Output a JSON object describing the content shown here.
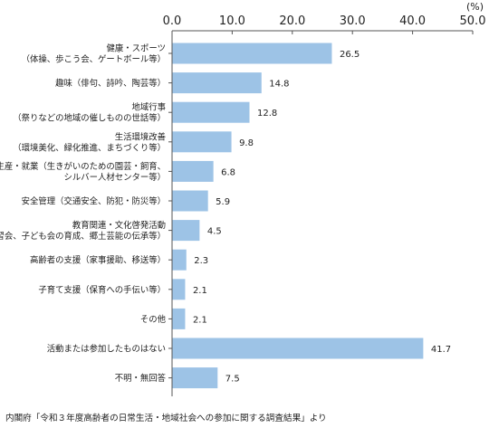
{
  "chart_data": {
    "type": "bar",
    "orientation": "horizontal",
    "unit_label": "(%)",
    "xlim": [
      0,
      50
    ],
    "ticks": [
      "0.0",
      "10.0",
      "20.0",
      "30.0",
      "40.0",
      "50.0"
    ],
    "tick_values": [
      0,
      10,
      20,
      30,
      40,
      50
    ],
    "bar_color": "#9dc3e6",
    "grid": false,
    "categories": [
      [
        "健康・スポーツ",
        "（体操、歩こう会、ゲートボール等）"
      ],
      [
        "趣味（俳句、詩吟、陶芸等）"
      ],
      [
        "地域行事",
        "（祭りなどの地域の催しものの世話等）"
      ],
      [
        "生活環境改善",
        "（環境美化、緑化推進、まちづくり等）"
      ],
      [
        "生産・就業（生きがいのための園芸・飼育、",
        "シルバー人材センター等）"
      ],
      [
        "安全管理（交通安全、防犯・防災等）"
      ],
      [
        "教育関連・文化啓発活動",
        "（学習会、子ども会の育成、郷土芸能の伝承等）"
      ],
      [
        "高齢者の支援（家事援助、移送等）"
      ],
      [
        "子育て支援（保育への手伝い等）"
      ],
      [
        "その他"
      ],
      [
        "活動または参加したものはない"
      ],
      [
        "不明・無回答"
      ]
    ],
    "values": [
      26.5,
      14.8,
      12.8,
      9.8,
      6.8,
      5.9,
      4.5,
      2.3,
      2.1,
      2.1,
      41.7,
      7.5
    ],
    "value_labels": [
      "26.5",
      "14.8",
      "12.8",
      "9.8",
      "6.8",
      "5.9",
      "4.5",
      "2.3",
      "2.1",
      "2.1",
      "41.7",
      "7.5"
    ]
  },
  "source": "内閣府「令和３年度高齢者の日常生活・地域社会への参加に関する調査結果」より"
}
